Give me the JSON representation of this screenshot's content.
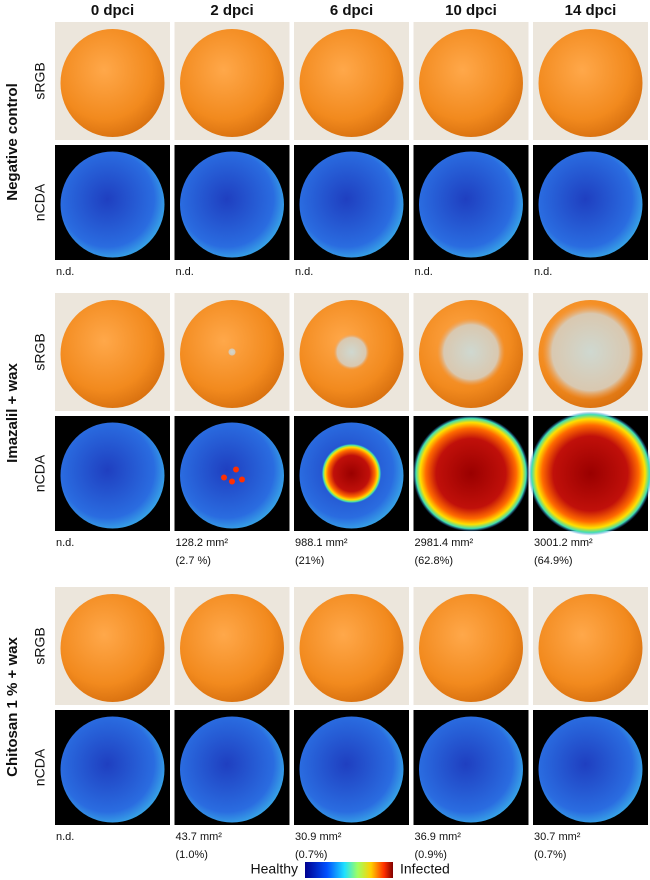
{
  "columns": [
    "0 dpci",
    "2 dpci",
    "6 dpci",
    "10 dpci",
    "14 dpci"
  ],
  "groups": [
    {
      "label": "Negative control",
      "rows": [
        "sRGB",
        "nCDA"
      ],
      "notes": [
        [
          "n.d."
        ],
        [
          "n.d."
        ],
        [
          "n.d."
        ],
        [
          "n.d."
        ],
        [
          "n.d."
        ]
      ]
    },
    {
      "label": "Imazalil + wax",
      "rows": [
        "sRGB",
        "nCDA"
      ],
      "notes": [
        [
          "n.d."
        ],
        [
          "128.2 mm²",
          "(2.7 %)"
        ],
        [
          "988.1 mm²",
          "(21%)"
        ],
        [
          "2981.4 mm²",
          "(62.8%)"
        ],
        [
          "3001.2 mm²",
          "(64.9%)"
        ]
      ]
    },
    {
      "label": "Chitosan 1 % + wax",
      "rows": [
        "sRGB",
        "nCDA"
      ],
      "notes": [
        [
          "n.d."
        ],
        [
          "43.7 mm²",
          "(1.0%)"
        ],
        [
          "30.9 mm²",
          "(0.7%)"
        ],
        [
          "36.9 mm²",
          "(0.9%)"
        ],
        [
          "30.7 mm²",
          "(0.7%)"
        ]
      ]
    }
  ],
  "colorbar": {
    "low": "Healthy",
    "high": "Infected"
  }
}
